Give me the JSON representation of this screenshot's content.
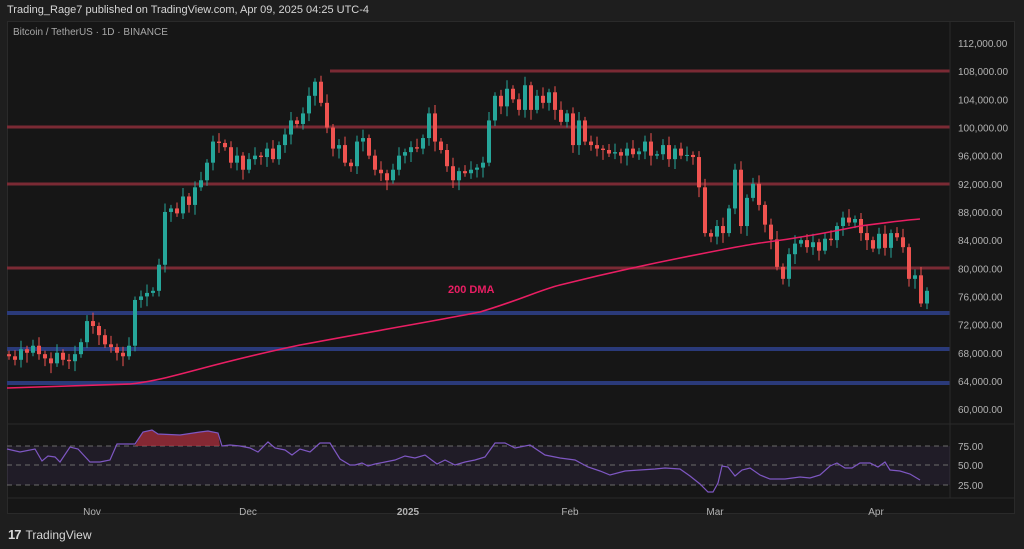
{
  "header": {
    "published": "Trading_Rage7 published on TradingView.com, Apr 09, 2025 04:25 UTC-4"
  },
  "symbol": {
    "label": "Bitcoin / TetherUS · 1D · BINANCE"
  },
  "footer": {
    "logo_icon": "tradingview-logo-icon",
    "logo_glyph": "17",
    "brand": "TradingView"
  },
  "annotation": {
    "dma_label": "200 DMA"
  },
  "colors": {
    "bg": "#161616",
    "bull": "#26a69a",
    "bear": "#ef5350",
    "resistance": "#7a2a34",
    "support": "#2a3a7a",
    "dma": "#e91e63",
    "rsi": "#7e57c2"
  },
  "chart_data": [
    {
      "type": "candlestick",
      "title": "Bitcoin / TetherUS · 1D · BINANCE",
      "xlabel": "",
      "ylabel": "",
      "ylim": [
        60000,
        112000
      ],
      "x_ticks": [
        "Nov",
        "Dec",
        "2025",
        "Feb",
        "Mar",
        "Apr"
      ],
      "y_ticks": [
        "112,000.00",
        "108,000.00",
        "104,000.00",
        "100,000.00",
        "96,000.00",
        "92,000.00",
        "88,000.00",
        "84,000.00",
        "80,000.00",
        "76,000.00",
        "72,000.00",
        "68,000.00",
        "64,000.00",
        "60,000.00"
      ],
      "horizontal_levels": {
        "resistance": [
          108000,
          100000,
          92000,
          80000
        ],
        "support": [
          73800,
          68500,
          63800
        ]
      },
      "series": [
        {
          "name": "200 DMA",
          "type": "line",
          "points": [
            [
              0,
              63300
            ],
            [
              130,
              63800
            ],
            [
              200,
              66500
            ],
            [
              300,
              70000
            ],
            [
              400,
              72500
            ],
            [
              480,
              74500
            ],
            [
              560,
              79000
            ],
            [
              660,
              82000
            ],
            [
              740,
              83900
            ],
            [
              820,
              84900
            ],
            [
              920,
              86800
            ]
          ]
        }
      ],
      "annotations": [
        "200 DMA"
      ],
      "grid": false
    },
    {
      "type": "line",
      "title": "RSI",
      "ylim": [
        10,
        90
      ],
      "y_ticks": [
        "75.00",
        "50.00",
        "25.00"
      ],
      "bands": [
        30,
        70
      ],
      "overbought_region": "late Nov - mid Dec",
      "oversold_region": "late Feb"
    }
  ]
}
